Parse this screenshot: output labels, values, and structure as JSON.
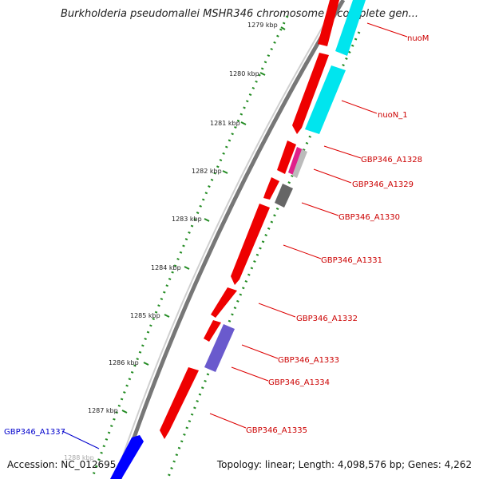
{
  "title": "Burkholderia pseudomallei MSHR346 chromosome I, complete gen...",
  "footer": {
    "accession": "Accession: NC_012695",
    "topology": "Topology: linear; Length: 4,098,576 bp; Genes: 4,262"
  },
  "ruler": {
    "labels": [
      "1279 kbp",
      "1280 kbp",
      "1281 kbp",
      "1282 kbp",
      "1283 kbp",
      "1284 kbp",
      "1285 kbp",
      "1286 kbp",
      "1287 kbp",
      "1288 kbp"
    ]
  },
  "genes": [
    {
      "name": "nuoM",
      "color": "#cc0000"
    },
    {
      "name": "nuoN_1",
      "color": "#cc0000"
    },
    {
      "name": "GBP346_A1328",
      "color": "#cc0000"
    },
    {
      "name": "GBP346_A1329",
      "color": "#cc0000"
    },
    {
      "name": "GBP346_A1330",
      "color": "#cc0000"
    },
    {
      "name": "GBP346_A1331",
      "color": "#cc0000"
    },
    {
      "name": "GBP346_A1332",
      "color": "#cc0000"
    },
    {
      "name": "GBP346_A1333",
      "color": "#cc0000"
    },
    {
      "name": "GBP346_A1334",
      "color": "#cc0000"
    },
    {
      "name": "GBP346_A1335",
      "color": "#cc0000"
    },
    {
      "name": "GBP346_A1337",
      "color": "#0000cc"
    }
  ],
  "colors": {
    "cds_forward": "#ee0000",
    "cds_cyan": "#00e5ee",
    "cds_magenta": "#e0208a",
    "cds_gray": "#666666",
    "cds_purple": "#6a5acd",
    "cds_blue": "#0000ff",
    "ruler": "#228b22",
    "backbone": "#777777"
  }
}
